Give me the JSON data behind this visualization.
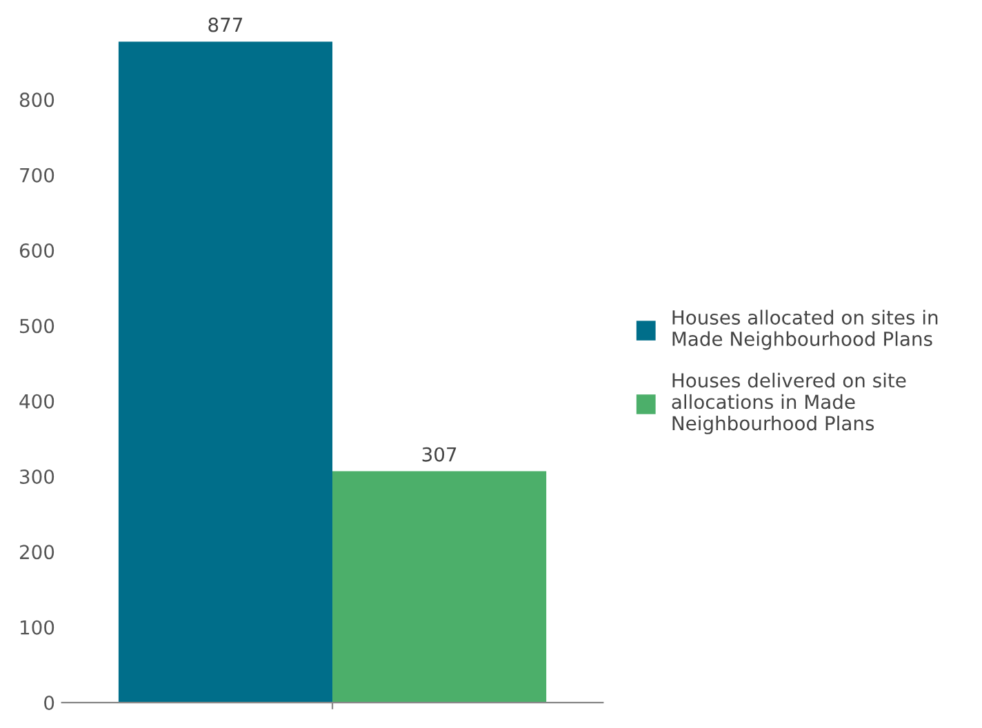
{
  "chart_data": {
    "type": "bar",
    "categories": [
      null
    ],
    "series": [
      {
        "name": "Houses allocated on sites in\nMade Neighbourhood Plans",
        "color": "#006e8a",
        "values": [
          877
        ]
      },
      {
        "name": "Houses delivered on site\nallocations in Made\nNeighbourhood Plans",
        "color": "#4caf6a",
        "values": [
          307
        ]
      }
    ],
    "ylim": [
      0,
      877
    ],
    "yticks": [
      0,
      100,
      200,
      300,
      400,
      500,
      600,
      700,
      800
    ],
    "grid": false,
    "legend": "right",
    "data_labels": true
  }
}
